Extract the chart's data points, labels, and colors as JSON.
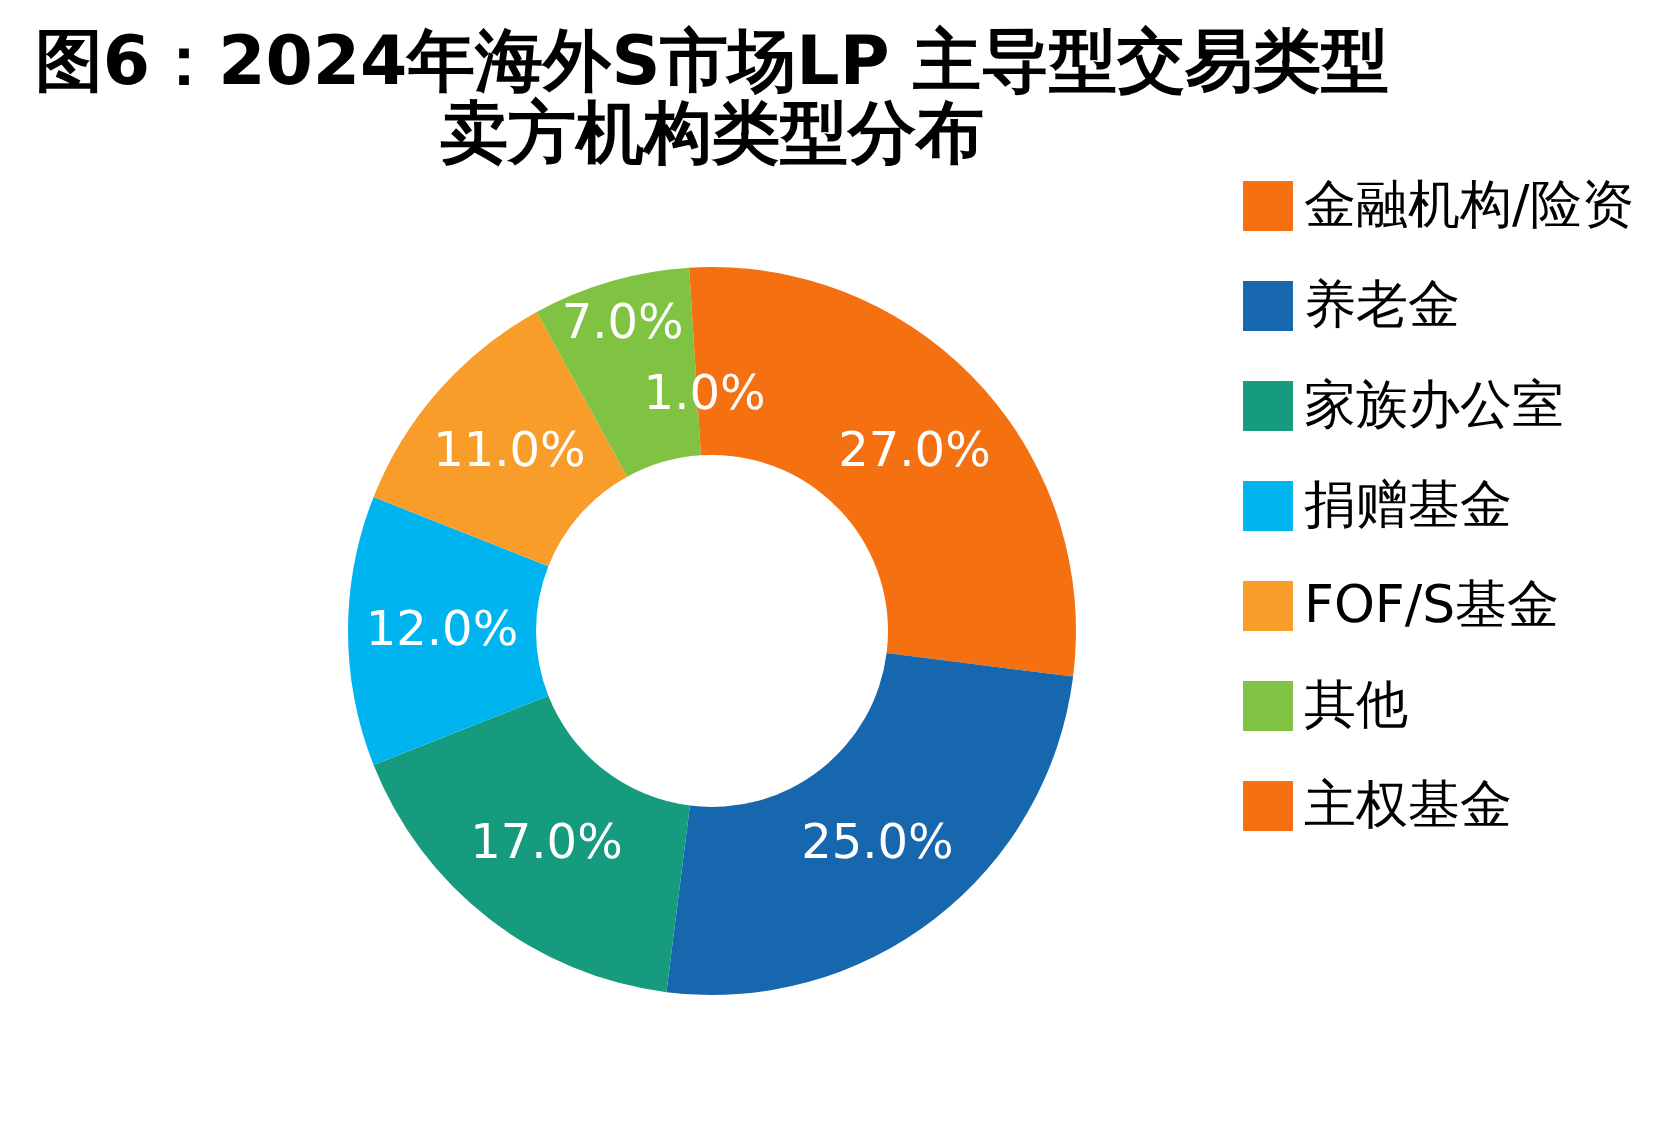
{
  "chart_data": {
    "type": "donut",
    "title": [
      "图6：2024年海外S市场LP 主导型交易类型",
      "卖方机构类型分布"
    ],
    "categories": [
      "金融机构/险资",
      "养老金",
      "家族办公室",
      "捐赠基金",
      "FOF/S基金",
      "其他",
      "主权基金"
    ],
    "values": [
      27.0,
      25.0,
      17.0,
      12.0,
      11.0,
      7.0,
      1.0
    ],
    "value_labels": [
      "27.0%",
      "25.0%",
      "17.0%",
      "12.0%",
      "11.0%",
      "7.0%",
      "1.0%"
    ],
    "colors": [
      "#f57010",
      "#1667ad",
      "#169b7e",
      "#00b5ef",
      "#f99d2a",
      "#80c342",
      "#f57010"
    ],
    "legend": "right"
  }
}
